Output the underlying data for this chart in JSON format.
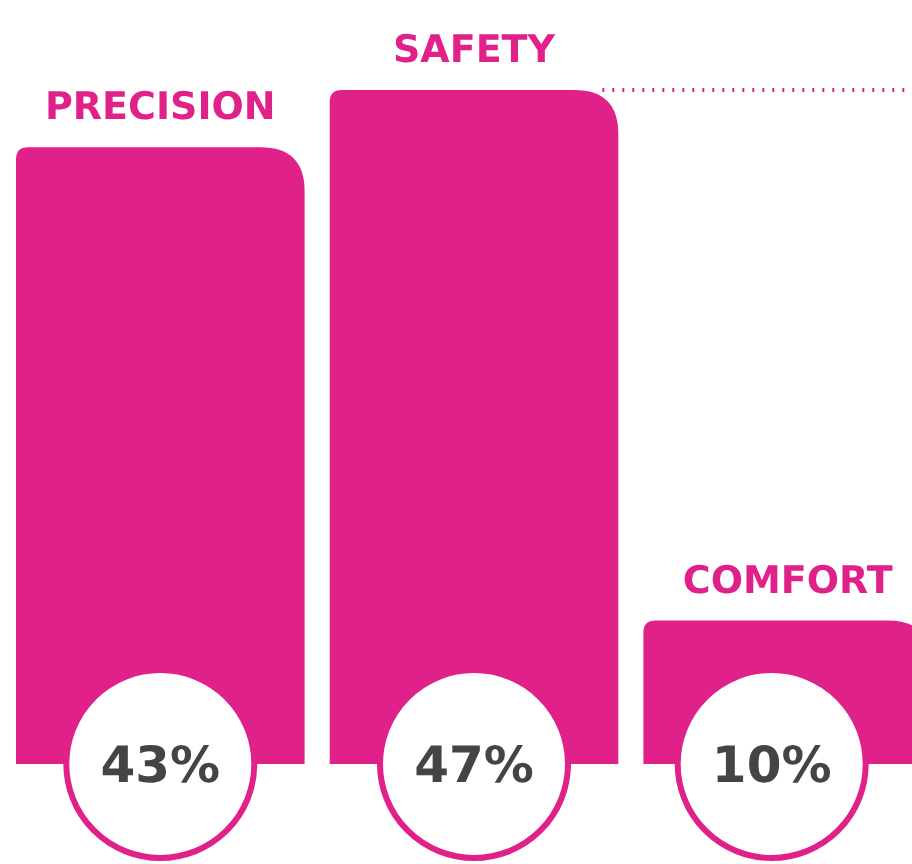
{
  "chart_data": {
    "type": "bar",
    "categories": [
      "PRECISION",
      "SAFETY",
      "COMFORT"
    ],
    "values": [
      43,
      47,
      10
    ],
    "color": "#e0218a",
    "value_labels": [
      "43%",
      "47%",
      "10%"
    ],
    "ref_lines": [
      {
        "axis": "y",
        "value": 47,
        "color": "#e0218a",
        "line_style": "dotted"
      }
    ]
  }
}
